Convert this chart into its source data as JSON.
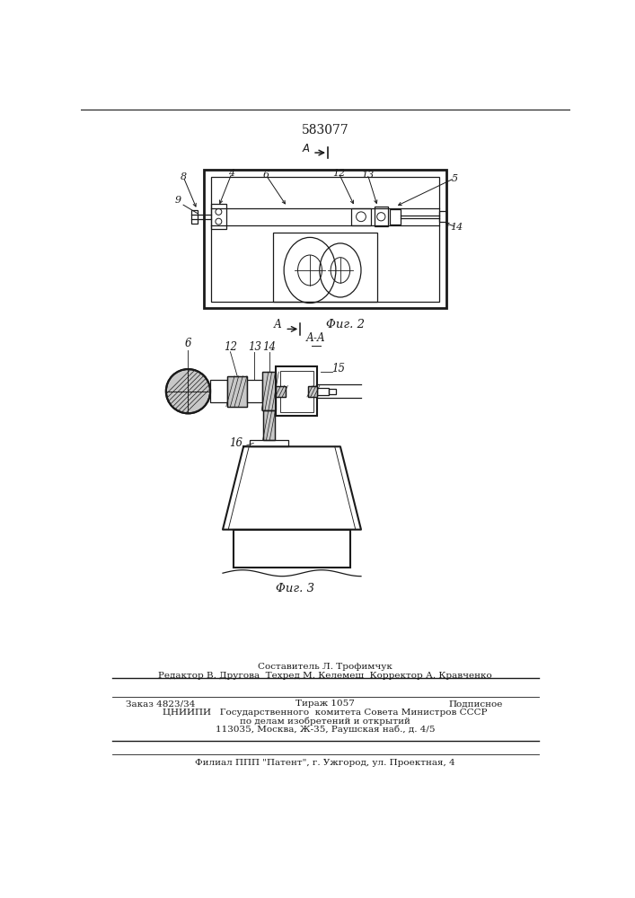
{
  "patent_number": "583077",
  "fig2_label": "Φиг. 2",
  "fig3_label": "Φиг. 3",
  "footer_line1": "Составитель Л. Трофимчук",
  "footer_line2": "Редактор В. Другова  Техред М. Келемеш  Корректор А. Кравченко",
  "footer_order": "Заказ 4823/34",
  "footer_tirazh": "Тираж 1057",
  "footer_podp": "Подписное",
  "footer_line4": "ЦНИИПИ   Государственного  комитета Совета Министров СССР",
  "footer_line5": "по делам изобретений и открытий",
  "footer_line6": "113035, Москва, Ж-35, Раушская наб., д. 4/5",
  "footer_line7": "Филиал ППП \"Патент\", г. Ужгород, ул. Проектная, 4",
  "lc": "#1a1a1a"
}
